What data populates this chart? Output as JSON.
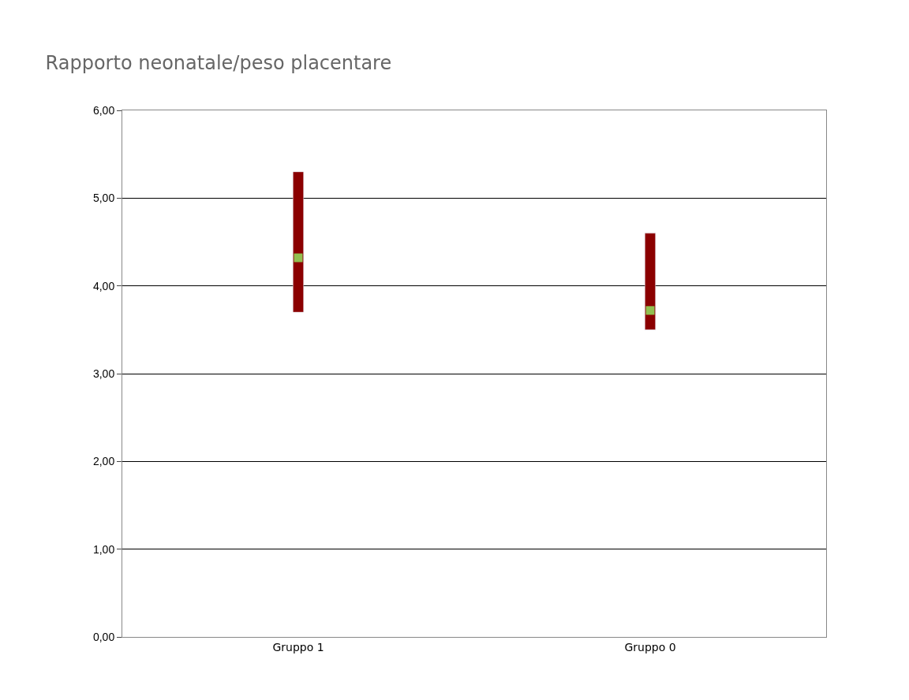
{
  "chart_data": {
    "type": "bar",
    "title": "Rapporto neonatale/peso placentare",
    "categories": [
      "Gruppo 1",
      "Gruppo 0"
    ],
    "series": [
      {
        "color": "#8b0000",
        "base": [
          3.7,
          3.5
        ],
        "values": [
          1.6,
          1.1
        ]
      },
      {
        "type": "scatter",
        "color": "#92c050",
        "values": [
          4.32,
          3.72
        ]
      }
    ],
    "ylim": [
      0,
      6
    ],
    "yticks": [
      {
        "value": 0,
        "label": "0,00"
      },
      {
        "value": 1,
        "label": "1,00"
      },
      {
        "value": 2,
        "label": "2,00"
      },
      {
        "value": 3,
        "label": "3,00"
      },
      {
        "value": 4,
        "label": "4,00"
      },
      {
        "value": 5,
        "label": "5,00"
      },
      {
        "value": 6,
        "label": "6,00"
      }
    ],
    "grid": "y",
    "marker": "square"
  }
}
